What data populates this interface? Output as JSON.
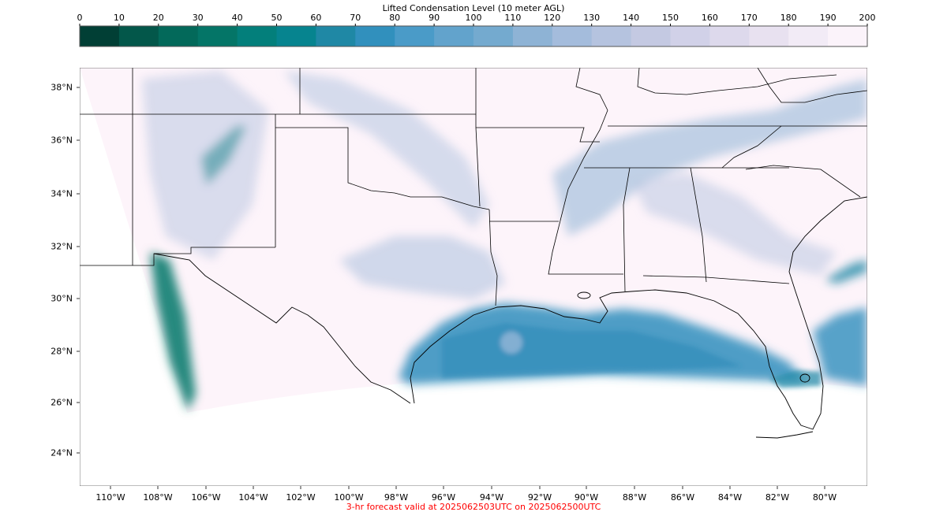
{
  "colorbar": {
    "title": "Lifted Condensation Level (10 meter AGL)",
    "ticks": [
      "0",
      "10",
      "20",
      "30",
      "40",
      "50",
      "60",
      "70",
      "80",
      "90",
      "100",
      "110",
      "120",
      "130",
      "140",
      "150",
      "160",
      "170",
      "180",
      "190",
      "200"
    ],
    "colors": [
      "#013f35",
      "#03574a",
      "#03695a",
      "#047567",
      "#037f7b",
      "#06848f",
      "#1f88a5",
      "#3190bd",
      "#4a9bc8",
      "#62a3cc",
      "#74aacf",
      "#8eb3d5",
      "#a4bcdc",
      "#b5c3df",
      "#c4c9e2",
      "#d1d1e8",
      "#ddd9ec",
      "#e8e1f0",
      "#f2ebf6",
      "#fbf3fa"
    ]
  },
  "map": {
    "lat_labels": [
      "38°N",
      "36°N",
      "34°N",
      "32°N",
      "30°N",
      "28°N",
      "26°N",
      "24°N"
    ],
    "lon_labels": [
      "110°W",
      "108°W",
      "106°W",
      "104°W",
      "102°W",
      "100°W",
      "98°W",
      "96°W",
      "94°W",
      "92°W",
      "90°W",
      "88°W",
      "86°W",
      "84°W",
      "82°W",
      "80°W"
    ],
    "background_color": "#fdf4fa",
    "outline_color": "#000000"
  },
  "footer": {
    "text": "3-hr forecast valid at 2025062503UTC on 2025062500UTC",
    "color": "#ff0000"
  }
}
